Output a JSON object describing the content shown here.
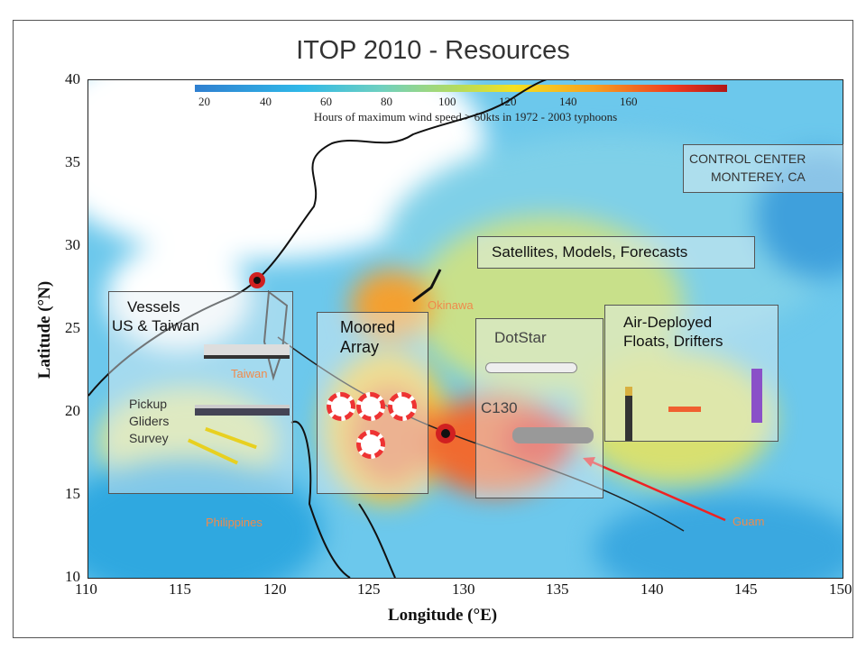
{
  "title": "ITOP 2010 - Resources",
  "colorbar": {
    "ticks": [
      "20",
      "40",
      "60",
      "80",
      "100",
      "120",
      "140",
      "160"
    ],
    "caption": "Hours of maximum wind speed > 60kts in 1972 - 2003 typhoons",
    "colors": [
      "#2f7fd0",
      "#2fb8e8",
      "#6fd0c0",
      "#b7dc5a",
      "#f4e020",
      "#f7a020",
      "#ee3a20",
      "#b01818"
    ]
  },
  "x_axis": {
    "label": "Longitude (°E)",
    "ticks": [
      "110",
      "115",
      "120",
      "125",
      "130",
      "135",
      "140",
      "145",
      "150"
    ]
  },
  "y_axis": {
    "label": "Latitude (°N)",
    "ticks": [
      "40",
      "35",
      "30",
      "25",
      "20",
      "15",
      "10"
    ]
  },
  "boxes": {
    "control": "CONTROL CENTER",
    "control2": "MONTEREY, CA",
    "satellites": "Satellites, Models, Forecasts",
    "vessels1": "Vessels",
    "vessels2": "US & Taiwan",
    "pickup1": "Pickup",
    "pickup2": "Gliders",
    "pickup3": "Survey",
    "moored1": "Moored",
    "moored2": "Array",
    "dotstar": "DotStar",
    "c130": "C130",
    "air1": "Air-Deployed",
    "air2": "Floats, Drifters"
  },
  "places": {
    "okinawa": "Okinawa",
    "taiwan": "Taiwan",
    "philippines": "Philippines",
    "guam": "Guam"
  }
}
